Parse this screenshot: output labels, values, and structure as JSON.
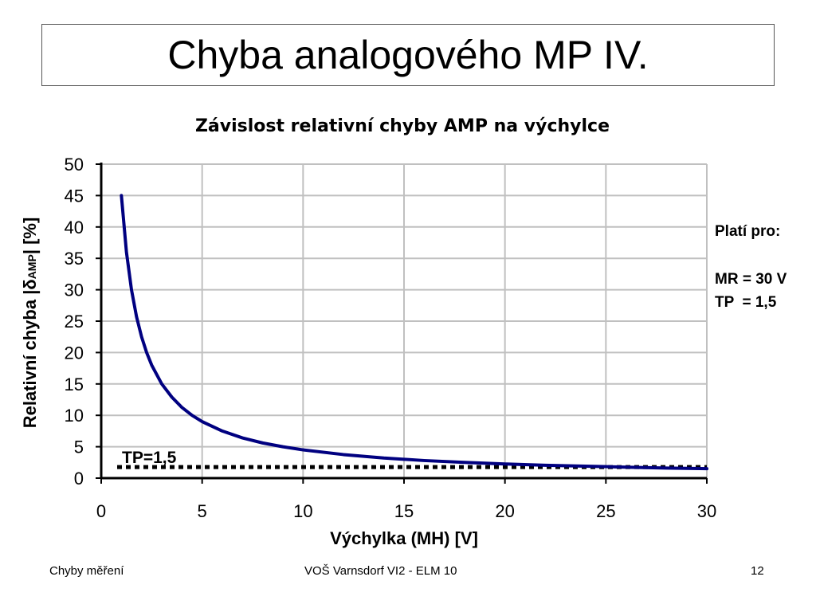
{
  "slide": {
    "title": "Chyba analogového MP IV.",
    "footer_left": "Chyby měření",
    "footer_center": "VOŠ Varnsdorf  VI2 - ELM 10",
    "page_number": "12"
  },
  "notes": {
    "heading": "Platí pro:",
    "line1": "MR = 30 V",
    "line2": "TP  = 1,5"
  },
  "chart_data": {
    "type": "line",
    "title": "Závislost relativní chyby AMP na výchylce",
    "xlabel": "Výchylka (MH) [V]",
    "ylabel_main": "Relativní chyba |δ",
    "ylabel_sub": "AMP",
    "ylabel_end": "| [%]",
    "xlim": [
      0,
      30
    ],
    "ylim": [
      0,
      50
    ],
    "xticks": [
      0,
      5,
      10,
      15,
      20,
      25,
      30
    ],
    "yticks": [
      0,
      5,
      10,
      15,
      20,
      25,
      30,
      35,
      40,
      45,
      50
    ],
    "grid": true,
    "series": [
      {
        "color": "#000080",
        "x": [
          1,
          1.25,
          1.5,
          1.75,
          2,
          2.25,
          2.5,
          3,
          3.5,
          4,
          4.5,
          5,
          6,
          7,
          8,
          9,
          10,
          12,
          14,
          16,
          18,
          20,
          22,
          24,
          26,
          28,
          30
        ],
        "y": [
          45,
          36,
          30,
          25.7,
          22.5,
          20,
          18,
          15,
          12.9,
          11.25,
          10,
          9,
          7.5,
          6.4,
          5.6,
          5,
          4.5,
          3.75,
          3.2,
          2.8,
          2.5,
          2.25,
          2.05,
          1.9,
          1.75,
          1.6,
          1.5
        ]
      }
    ],
    "reference_line": {
      "label": "TP=1,5",
      "y": 1.5,
      "color": "#000000"
    }
  }
}
